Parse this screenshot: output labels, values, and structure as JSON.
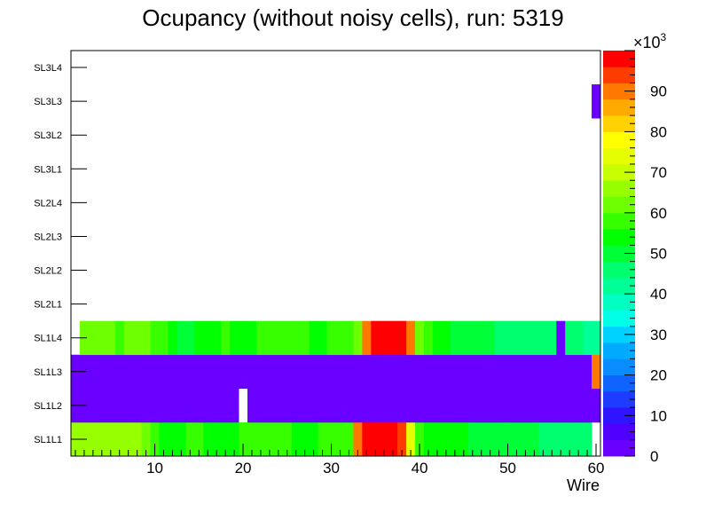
{
  "chart_data": {
    "type": "heatmap",
    "title": "Ocupancy (without noisy cells), run: 5319",
    "xlabel": "Wire",
    "ylabel": "",
    "xlim": [
      0.5,
      60.5
    ],
    "x_ticks": [
      10,
      20,
      30,
      40,
      50,
      60
    ],
    "y_categories": [
      "SL1L1",
      "SL1L2",
      "SL1L3",
      "SL1L4",
      "SL2L1",
      "SL2L2",
      "SL2L3",
      "SL2L4",
      "SL3L1",
      "SL3L2",
      "SL3L3",
      "SL3L4"
    ],
    "colorbar": {
      "min": 0,
      "max": 100,
      "exponent_label": "×10",
      "exponent_power": "3",
      "tick_values": [
        0,
        10,
        20,
        30,
        40,
        50,
        60,
        70,
        80,
        90
      ],
      "palette": [
        "#6a00ff",
        "#4f00ff",
        "#2e14ff",
        "#1e3cff",
        "#0f64ff",
        "#0a8cff",
        "#00aaff",
        "#00d2ff",
        "#00ffe6",
        "#00ffc0",
        "#00ff96",
        "#00ff6e",
        "#00ff37",
        "#00ff00",
        "#37ff00",
        "#6eff00",
        "#96ff00",
        "#c8ff00",
        "#e6ff00",
        "#ffff00",
        "#ffd200",
        "#ffaa00",
        "#ff7800",
        "#ff3c00",
        "#ff0000"
      ]
    },
    "rows": {
      "SL1L1": [
        null,
        65,
        65,
        65,
        65,
        65,
        65,
        65,
        65,
        62,
        58,
        54,
        54,
        54,
        58,
        58,
        54,
        54,
        54,
        54,
        58,
        58,
        58,
        58,
        58,
        58,
        54,
        54,
        54,
        58,
        58,
        58,
        58,
        88,
        96,
        96,
        96,
        96,
        92,
        75,
        58,
        54,
        54,
        54,
        54,
        54,
        50,
        50,
        50,
        50,
        50,
        50,
        50,
        50,
        46,
        46,
        46,
        46,
        46,
        46,
        null
      ],
      "SL1L2": [
        null,
        1,
        1,
        1,
        1,
        1,
        1,
        1,
        1,
        1,
        1,
        1,
        1,
        1,
        1,
        1,
        1,
        1,
        1,
        1,
        null,
        1,
        1,
        1,
        1,
        1,
        1,
        1,
        1,
        1,
        1,
        1,
        1,
        1,
        1,
        1,
        1,
        1,
        1,
        1,
        1,
        1,
        1,
        1,
        1,
        1,
        1,
        1,
        1,
        1,
        1,
        1,
        1,
        1,
        1,
        1,
        1,
        1,
        1,
        1,
        1
      ],
      "SL1L3": [
        null,
        1,
        1,
        1,
        1,
        1,
        1,
        1,
        1,
        1,
        1,
        1,
        1,
        1,
        1,
        1,
        1,
        1,
        1,
        1,
        1,
        1,
        1,
        1,
        1,
        1,
        1,
        1,
        1,
        1,
        1,
        1,
        1,
        1,
        1,
        1,
        1,
        1,
        1,
        1,
        1,
        1,
        1,
        1,
        1,
        1,
        1,
        1,
        1,
        1,
        1,
        1,
        1,
        1,
        1,
        1,
        1,
        1,
        1,
        1,
        90
      ],
      "SL1L4": [
        null,
        null,
        61,
        61,
        61,
        61,
        58,
        62,
        62,
        62,
        58,
        58,
        54,
        50,
        50,
        54,
        54,
        54,
        58,
        54,
        54,
        54,
        58,
        58,
        58,
        58,
        58,
        58,
        54,
        54,
        58,
        58,
        58,
        62,
        88,
        96,
        96,
        96,
        96,
        88,
        62,
        58,
        54,
        54,
        50,
        50,
        50,
        50,
        50,
        46,
        46,
        46,
        46,
        46,
        46,
        46,
        1,
        46,
        46,
        42,
        42
      ],
      "SL2L1": [],
      "SL2L2": [],
      "SL2L3": [],
      "SL2L4": [],
      "SL3L1": [],
      "SL3L2": [],
      "SL3L3": [
        null,
        null,
        null,
        null,
        null,
        null,
        null,
        null,
        null,
        null,
        null,
        null,
        null,
        null,
        null,
        null,
        null,
        null,
        null,
        null,
        null,
        null,
        null,
        null,
        null,
        null,
        null,
        null,
        null,
        null,
        null,
        null,
        null,
        null,
        null,
        null,
        null,
        null,
        null,
        null,
        null,
        null,
        null,
        null,
        null,
        null,
        null,
        null,
        null,
        null,
        null,
        null,
        null,
        null,
        null,
        null,
        null,
        null,
        null,
        null,
        1
      ],
      "SL3L4": []
    }
  }
}
